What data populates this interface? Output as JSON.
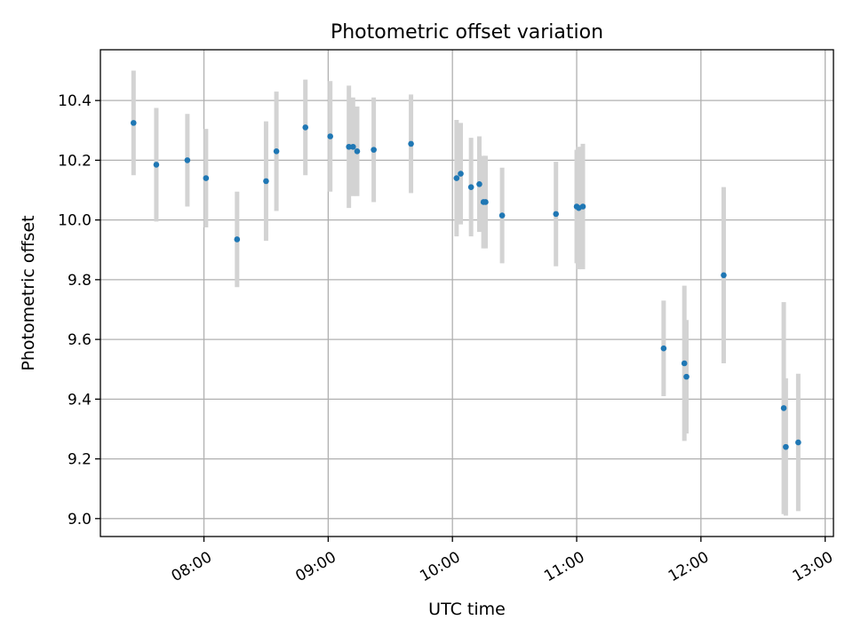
{
  "chart_data": {
    "type": "scatter",
    "title": "Photometric offset variation",
    "xlabel": "UTC time",
    "ylabel": "Photometric offset",
    "x_unit": "time of day (HH:MM, UTC)",
    "xlim": [
      "07:10",
      "13:04"
    ],
    "ylim": [
      8.94,
      10.57
    ],
    "x_ticks": [
      "08:00",
      "09:00",
      "10:00",
      "11:00",
      "12:00",
      "13:00"
    ],
    "y_ticks": [
      9.0,
      9.2,
      9.4,
      9.6,
      9.8,
      10.0,
      10.2,
      10.4
    ],
    "y_tick_labels": [
      "9.0",
      "9.2",
      "9.4",
      "9.6",
      "9.8",
      "10.0",
      "10.2",
      "10.4"
    ],
    "grid": true,
    "colors": {
      "points": "#1f77b4",
      "error_bars": "#d3d3d3",
      "grid": "#b0b0b0"
    },
    "points": [
      {
        "t": "07:26",
        "y": 10.325,
        "err": 0.175
      },
      {
        "t": "07:37",
        "y": 10.185,
        "err": 0.19
      },
      {
        "t": "07:52",
        "y": 10.2,
        "err": 0.155
      },
      {
        "t": "08:01",
        "y": 10.14,
        "err": 0.165
      },
      {
        "t": "08:16",
        "y": 9.935,
        "err": 0.16
      },
      {
        "t": "08:30",
        "y": 10.13,
        "err": 0.2
      },
      {
        "t": "08:35",
        "y": 10.23,
        "err": 0.2
      },
      {
        "t": "08:49",
        "y": 10.31,
        "err": 0.16
      },
      {
        "t": "09:01",
        "y": 10.28,
        "err": 0.185
      },
      {
        "t": "09:10",
        "y": 10.245,
        "err": 0.205
      },
      {
        "t": "09:12",
        "y": 10.245,
        "err": 0.165
      },
      {
        "t": "09:14",
        "y": 10.23,
        "err": 0.15
      },
      {
        "t": "09:22",
        "y": 10.235,
        "err": 0.175
      },
      {
        "t": "09:40",
        "y": 10.255,
        "err": 0.165
      },
      {
        "t": "10:02",
        "y": 10.14,
        "err": 0.195
      },
      {
        "t": "10:04",
        "y": 10.155,
        "err": 0.17
      },
      {
        "t": "10:09",
        "y": 10.11,
        "err": 0.165
      },
      {
        "t": "10:13",
        "y": 10.12,
        "err": 0.16
      },
      {
        "t": "10:15",
        "y": 10.06,
        "err": 0.155
      },
      {
        "t": "10:16",
        "y": 10.06,
        "err": 0.155
      },
      {
        "t": "10:24",
        "y": 10.015,
        "err": 0.16
      },
      {
        "t": "10:50",
        "y": 10.02,
        "err": 0.175
      },
      {
        "t": "11:00",
        "y": 10.045,
        "err": 0.19
      },
      {
        "t": "11:01",
        "y": 10.04,
        "err": 0.205
      },
      {
        "t": "11:03",
        "y": 10.045,
        "err": 0.21
      },
      {
        "t": "11:42",
        "y": 9.57,
        "err": 0.16
      },
      {
        "t": "11:52",
        "y": 9.52,
        "err": 0.26
      },
      {
        "t": "11:53",
        "y": 9.475,
        "err": 0.19
      },
      {
        "t": "12:11",
        "y": 9.815,
        "err": 0.295
      },
      {
        "t": "12:40",
        "y": 9.37,
        "err": 0.355
      },
      {
        "t": "12:41",
        "y": 9.24,
        "err": 0.23
      },
      {
        "t": "12:47",
        "y": 9.255,
        "err": 0.23
      }
    ]
  }
}
